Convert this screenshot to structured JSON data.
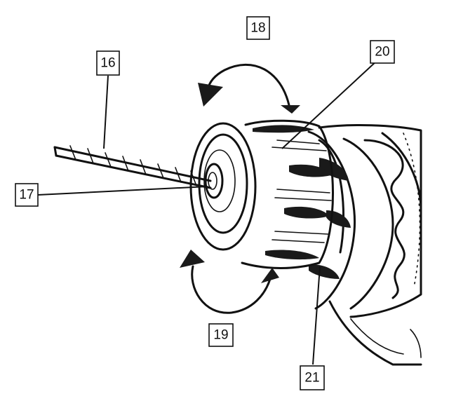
{
  "diagram": {
    "colors": {
      "ink": "#111111",
      "background": "#ffffff"
    },
    "callouts": [
      {
        "id": "16",
        "label": "16",
        "part": "drill-bit"
      },
      {
        "id": "17",
        "label": "17",
        "part": "chuck-jaws"
      },
      {
        "id": "18",
        "label": "18",
        "part": "tighten-rotation"
      },
      {
        "id": "19",
        "label": "19",
        "part": "loosen-rotation"
      },
      {
        "id": "20",
        "label": "20",
        "part": "chuck-sleeve"
      },
      {
        "id": "21",
        "label": "21",
        "part": "rear-collar"
      }
    ]
  }
}
